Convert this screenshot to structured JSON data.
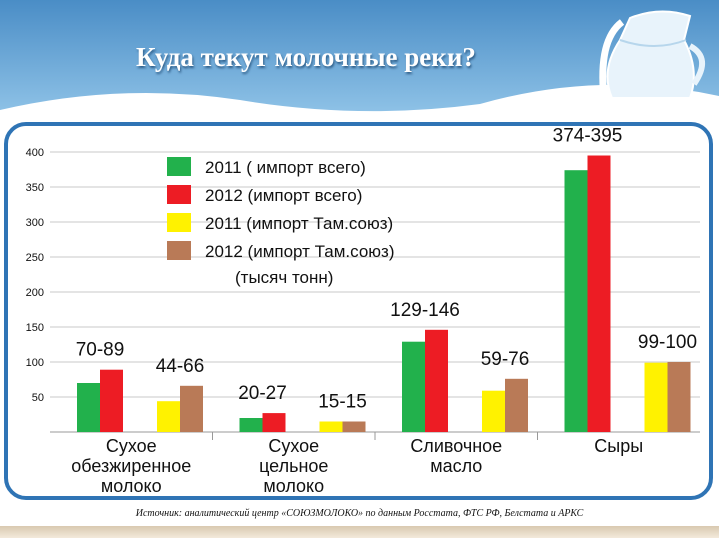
{
  "title": "Куда текут молочные реки?",
  "source": "Источник: аналитический центр «СОЮЗМОЛОКО» по данным Росстата, ФТС РФ,   Белстата  и АРКС",
  "colors": {
    "banner_top": "#4a8dc6",
    "banner_bottom": "#8dc1e6",
    "frame": "#2f74b5"
  },
  "icons": {
    "banner_art": "milk-jug-icon"
  },
  "chart_data": {
    "type": "bar",
    "title": "",
    "ylim": [
      0,
      400
    ],
    "yticks": [
      50,
      100,
      150,
      200,
      250,
      300,
      350,
      400
    ],
    "grid": true,
    "legend_position": "top-center",
    "legend_note": "(тысяч тонн)",
    "groups": [
      {
        "categories": [
          "Сухое обезжиренное молоко",
          "Сухое цельное молоко"
        ],
        "category_lines": [
          [
            "Сухое",
            "обезжиренное",
            "молоко"
          ],
          [
            "Сухое",
            "цельное",
            "молоко"
          ]
        ],
        "range_labels": [
          [
            "70-89",
            "44-66"
          ],
          [
            "20-27",
            "15-15"
          ]
        ]
      }
    ],
    "categories": [
      "Сухое обезжиренное молоко",
      "Сухое цельное молоко",
      "Сливочное масло",
      "Сыры"
    ],
    "category_lines": [
      [
        "Сухое",
        "обезжиренное",
        "молоко"
      ],
      [
        "Сухое",
        "цельное",
        "молоко"
      ],
      [
        "Сливочное",
        "масло"
      ],
      [
        "Сыры"
      ]
    ],
    "range_labels": [
      [
        "70-89",
        "44-66"
      ],
      [
        "20-27",
        "15-15"
      ],
      [
        "129-146",
        "59-76"
      ],
      [
        "374-395",
        "99-100"
      ]
    ],
    "series": [
      {
        "name": "2011 ( импорт всего)",
        "color": "#22b14c",
        "values": [
          70,
          20,
          129,
          374
        ]
      },
      {
        "name": "2012 (импорт всего)",
        "color": "#ed1c24",
        "values": [
          89,
          27,
          146,
          395
        ]
      },
      {
        "name": "2011 (импорт Там.союз)",
        "color": "#fff200",
        "values": [
          44,
          15,
          59,
          99
        ]
      },
      {
        "name": "2012 (импорт Там.союз)",
        "color": "#b97a57",
        "values": [
          66,
          15,
          76,
          100
        ]
      }
    ]
  }
}
